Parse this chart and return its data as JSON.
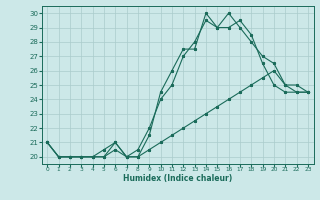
{
  "xlabel": "Humidex (Indice chaleur)",
  "ylabel": "",
  "xlim": [
    -0.5,
    23.5
  ],
  "ylim": [
    19.5,
    30.5
  ],
  "xticks": [
    0,
    1,
    2,
    3,
    4,
    5,
    6,
    7,
    8,
    9,
    10,
    11,
    12,
    13,
    14,
    15,
    16,
    17,
    18,
    19,
    20,
    21,
    22,
    23
  ],
  "yticks": [
    20,
    21,
    22,
    23,
    24,
    25,
    26,
    27,
    28,
    29,
    30
  ],
  "bg_color": "#cce8e8",
  "line_color": "#1a6b5a",
  "grid_color": "#aacccc",
  "line1_x": [
    0,
    1,
    2,
    3,
    4,
    5,
    6,
    7,
    8,
    9,
    10,
    11,
    12,
    13,
    14,
    15,
    16,
    17,
    18,
    19,
    20,
    21,
    22,
    23
  ],
  "line1_y": [
    21,
    20,
    20,
    20,
    20,
    20,
    21,
    20,
    20,
    21.5,
    24.5,
    26,
    27.5,
    27.5,
    30,
    29,
    29,
    29.5,
    28.5,
    26.5,
    25,
    24.5,
    24.5,
    24.5
  ],
  "line2_x": [
    0,
    1,
    2,
    3,
    4,
    5,
    6,
    7,
    8,
    9,
    10,
    11,
    12,
    13,
    14,
    15,
    16,
    17,
    18,
    19,
    20,
    21,
    22,
    23
  ],
  "line2_y": [
    21,
    20,
    20,
    20,
    20,
    20.5,
    21,
    20,
    20.5,
    22,
    24,
    25,
    27,
    28,
    29.5,
    29,
    30,
    29,
    28,
    27,
    26.5,
    25,
    25,
    24.5
  ],
  "line3_x": [
    0,
    1,
    2,
    3,
    4,
    5,
    6,
    7,
    8,
    9,
    10,
    11,
    12,
    13,
    14,
    15,
    16,
    17,
    18,
    19,
    20,
    21,
    22,
    23
  ],
  "line3_y": [
    21,
    20,
    20,
    20,
    20,
    20,
    20.5,
    20,
    20,
    20.5,
    21,
    21.5,
    22,
    22.5,
    23,
    23.5,
    24,
    24.5,
    25,
    25.5,
    26,
    25,
    24.5,
    24.5
  ]
}
